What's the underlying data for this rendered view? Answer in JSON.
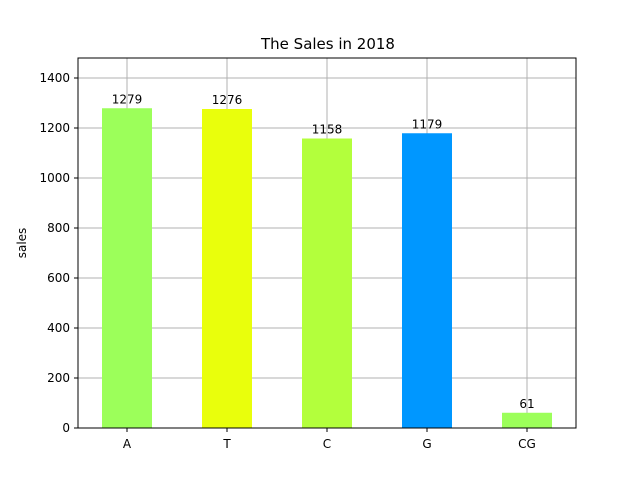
{
  "chart_data": {
    "type": "bar",
    "title": "The Sales in 2018",
    "xlabel": "",
    "ylabel": "sales",
    "categories": [
      "A",
      "T",
      "C",
      "G",
      "CG"
    ],
    "values": [
      1279,
      1276,
      1158,
      1179,
      61
    ],
    "data_labels": [
      "1279",
      "1276",
      "1158",
      "1179",
      "61"
    ],
    "colors": [
      "#9cff5a",
      "#e9ff0c",
      "#b3ff3c",
      "#0097ff",
      "#9cff5a"
    ],
    "ylim": [
      0,
      1480
    ],
    "yticks": [
      0,
      200,
      400,
      600,
      800,
      1000,
      1200,
      1400
    ],
    "ytick_labels": [
      "0",
      "200",
      "400",
      "600",
      "800",
      "1000",
      "1200",
      "1400"
    ],
    "grid": true
  }
}
